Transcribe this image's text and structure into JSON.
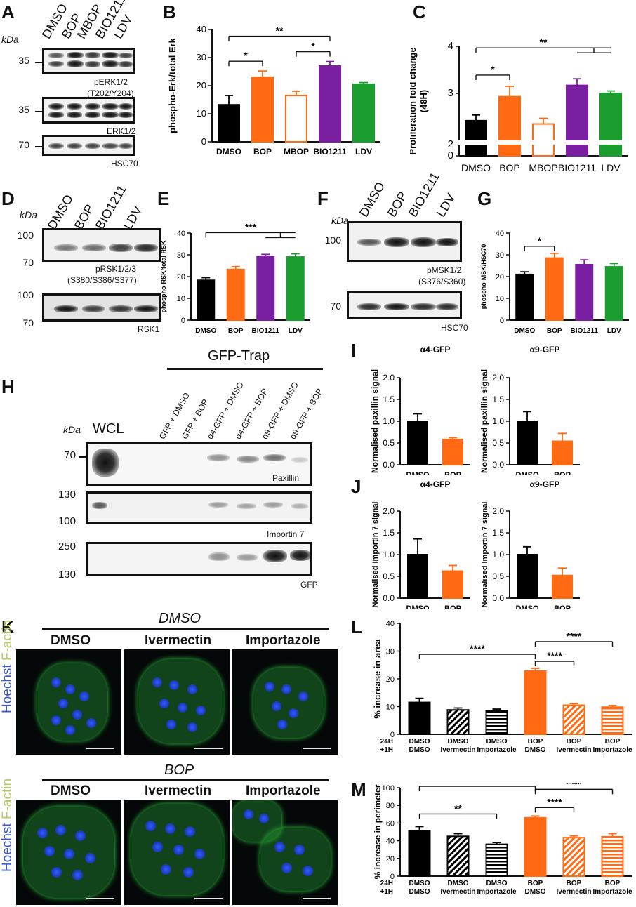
{
  "colors": {
    "black": "#000000",
    "orange": "#ff6a13",
    "purple": "#7b1fa2",
    "green": "#1a9d2e",
    "white": "#ffffff"
  },
  "panels": {
    "A": "A",
    "B": "B",
    "C": "C",
    "D": "D",
    "E": "E",
    "F": "F",
    "G": "G",
    "H": "H",
    "I": "I",
    "J": "J",
    "K": "K",
    "L": "L",
    "M": "M"
  },
  "blots": {
    "a": {
      "kda": "kDa",
      "lanes": [
        "DMSO",
        "BOP",
        "MBOP",
        "BIO1211",
        "LDV"
      ],
      "mw": [
        "35",
        "35",
        "70"
      ],
      "captions": [
        "pERK1/2",
        "(T202/Y204)",
        "ERK1/2",
        "HSC70"
      ]
    },
    "d": {
      "kda": "kDa",
      "lanes": [
        "DMSO",
        "BOP",
        "BIO1211",
        "LDV"
      ],
      "mw": [
        "100",
        "70",
        "100",
        "70"
      ],
      "captions": [
        "pRSK1/2/3",
        "(S380/S386/S377)",
        "RSK1"
      ]
    },
    "f": {
      "kda": "kDa",
      "lanes": [
        "DMSO",
        "BOP",
        "BIO1211",
        "LDV"
      ],
      "mw": [
        "100",
        "70"
      ],
      "captions": [
        "pMSK1/2",
        "(S376/S360)",
        "HSC70"
      ]
    },
    "h": {
      "kda": "kDa",
      "wcl": "WCL",
      "trap": "GFP-Trap",
      "lanes": [
        "GFP + DMSO",
        "GFP + BOP",
        "α4-GFP + DMSO",
        "α4-GFP + BOP",
        "α9-GFP + DMSO",
        "α9-GFP + BOP"
      ],
      "mw": [
        "70",
        "130",
        "100",
        "250",
        "130"
      ],
      "captions": [
        "Paxillin",
        "Importin 7",
        "GFP"
      ]
    }
  },
  "micro": {
    "top_title": "DMSO",
    "bottom_title": "BOP",
    "cols": [
      "DMSO",
      "Ivermectin",
      "Importazole"
    ],
    "side_label": [
      "Hoechst",
      "F-actin"
    ]
  },
  "chart_data": [
    {
      "id": "B",
      "type": "bar",
      "ylabel": "phospho-Erk/total Erk",
      "categories": [
        "DMSO",
        "BOP",
        "MBOP",
        "BIO1211",
        "LDV"
      ],
      "values": [
        13.2,
        23.0,
        16.5,
        27.0,
        20.5
      ],
      "errors": [
        3.3,
        2.2,
        1.5,
        1.6,
        0.6
      ],
      "ylim": [
        0,
        40
      ],
      "yticks": [
        "0",
        "10",
        "20",
        "30",
        "40"
      ],
      "fill": [
        "#000000",
        "#ff6a13",
        "#ffffff",
        "#7b1fa2",
        "#1a9d2e"
      ],
      "stroke": [
        "#000000",
        "#ff6a13",
        "#ff6a13",
        "#7b1fa2",
        "#1a9d2e"
      ],
      "significance": [
        "*",
        "*",
        "**"
      ]
    },
    {
      "id": "C",
      "type": "bar",
      "ylabel": "Proliferation fold change",
      "ylabel2": "(48H)",
      "categories": [
        "DMSO",
        "BOP",
        "MBOP",
        "BIO1211",
        "LDV"
      ],
      "values": [
        2.42,
        2.93,
        2.35,
        3.17,
        3.0
      ],
      "errors": [
        0.12,
        0.22,
        0.12,
        0.14,
        0.05
      ],
      "ylim": [
        0,
        4
      ],
      "yticks": [
        "0",
        "2",
        "3",
        "4"
      ],
      "fill": [
        "#000000",
        "#ff6a13",
        "#ffffff",
        "#7b1fa2",
        "#1a9d2e"
      ],
      "stroke": [
        "#000000",
        "#ff6a13",
        "#ff6a13",
        "#7b1fa2",
        "#1a9d2e"
      ],
      "significance": [
        "*",
        "**"
      ]
    },
    {
      "id": "E",
      "type": "bar",
      "ylabel": "phospho-RSK/total RSK",
      "categories": [
        "DMSO",
        "BOP",
        "BIO1211",
        "LDV"
      ],
      "values": [
        18.3,
        23.3,
        29.2,
        29.0
      ],
      "errors": [
        1.2,
        1.3,
        1.0,
        1.5
      ],
      "ylim": [
        0,
        40
      ],
      "yticks": [
        "0",
        "10",
        "20",
        "30",
        "40"
      ],
      "fill": [
        "#000000",
        "#ff6a13",
        "#7b1fa2",
        "#1a9d2e"
      ],
      "stroke": [
        "#000000",
        "#ff6a13",
        "#7b1fa2",
        "#1a9d2e"
      ],
      "significance": [
        "***"
      ]
    },
    {
      "id": "G",
      "type": "bar",
      "ylabel": "phospho-MSK/HSC70",
      "categories": [
        "DMSO",
        "BOP",
        "BIO1211",
        "LDV"
      ],
      "values": [
        21.0,
        28.5,
        25.5,
        24.5
      ],
      "errors": [
        1.2,
        2.2,
        2.2,
        1.5
      ],
      "ylim": [
        0,
        40
      ],
      "yticks": [
        "0",
        "10",
        "20",
        "30",
        "40"
      ],
      "fill": [
        "#000000",
        "#ff6a13",
        "#7b1fa2",
        "#1a9d2e"
      ],
      "stroke": [
        "#000000",
        "#ff6a13",
        "#7b1fa2",
        "#1a9d2e"
      ],
      "significance": [
        "*"
      ]
    },
    {
      "id": "I1",
      "type": "bar",
      "title": "α4-GFP",
      "ylabel": "Normalised paxillin signal",
      "categories": [
        "DMSO",
        "BOP"
      ],
      "values": [
        1.0,
        0.58
      ],
      "errors": [
        0.17,
        0.04
      ],
      "ylim": [
        0,
        2
      ],
      "yticks": [
        "0.0",
        "0.5",
        "1.0",
        "1.5",
        "2.0"
      ],
      "fill": [
        "#000000",
        "#ff6a13"
      ]
    },
    {
      "id": "I2",
      "type": "bar",
      "title": "α9-GFP",
      "ylabel": "Normalised paxillin signal",
      "categories": [
        "DMSO",
        "BOP"
      ],
      "values": [
        1.0,
        0.54
      ],
      "errors": [
        0.22,
        0.18
      ],
      "ylim": [
        0,
        2
      ],
      "yticks": [
        "0.0",
        "0.5",
        "1.0",
        "1.5",
        "2.0"
      ],
      "fill": [
        "#000000",
        "#ff6a13"
      ]
    },
    {
      "id": "J1",
      "type": "bar",
      "title": "α4-GFP",
      "ylabel": "Normalised Importin 7 signal",
      "categories": [
        "DMSO",
        "BOP"
      ],
      "values": [
        1.0,
        0.62
      ],
      "errors": [
        0.36,
        0.13
      ],
      "ylim": [
        0,
        2
      ],
      "yticks": [
        "0.0",
        "0.5",
        "1.0",
        "1.5",
        "2.0"
      ],
      "fill": [
        "#000000",
        "#ff6a13"
      ]
    },
    {
      "id": "J2",
      "type": "bar",
      "title": "α9-GFP",
      "ylabel": "Normalised Importin 7 signal",
      "categories": [
        "DMSO",
        "BOP"
      ],
      "values": [
        1.0,
        0.52
      ],
      "errors": [
        0.18,
        0.17
      ],
      "ylim": [
        0,
        2
      ],
      "yticks": [
        "0.0",
        "0.5",
        "1.0",
        "1.5",
        "2.0"
      ],
      "fill": [
        "#000000",
        "#ff6a13"
      ]
    },
    {
      "id": "L",
      "type": "bar",
      "ylabel": "% increase in area",
      "rowlabels": [
        "24H",
        "+1H"
      ],
      "categories": [
        [
          "DMSO",
          "DMSO"
        ],
        [
          "DMSO",
          "Ivermectin"
        ],
        [
          "DMSO",
          "Importazole"
        ],
        [
          "BOP",
          "DMSO"
        ],
        [
          "BOP",
          "Ivermectin"
        ],
        [
          "BOP",
          "Importazole"
        ]
      ],
      "values": [
        11.5,
        8.8,
        8.5,
        22.8,
        10.5,
        9.8
      ],
      "errors": [
        1.5,
        0.7,
        0.6,
        1.0,
        0.6,
        0.6
      ],
      "ylim": [
        0,
        40
      ],
      "yticks": [
        "0",
        "10",
        "20",
        "30",
        "40"
      ],
      "pattern": [
        "solid",
        "diag",
        "horiz",
        "solid",
        "diag",
        "horiz"
      ],
      "color": [
        "#000000",
        "#000000",
        "#000000",
        "#ff6a13",
        "#ff6a13",
        "#ff6a13"
      ],
      "significance": [
        "****",
        "****",
        "****"
      ]
    },
    {
      "id": "M",
      "type": "bar",
      "ylabel": "% increase in perimeter",
      "rowlabels": [
        "24H",
        "+1H"
      ],
      "categories": [
        [
          "DMSO",
          "DMSO"
        ],
        [
          "DMSO",
          "Ivermectin"
        ],
        [
          "DMSO",
          "Importazole"
        ],
        [
          "BOP",
          "DMSO"
        ],
        [
          "BOP",
          "Ivermectin"
        ],
        [
          "BOP",
          "Importazole"
        ]
      ],
      "values": [
        51.5,
        45.0,
        36.0,
        66.0,
        43.5,
        44.5
      ],
      "errors": [
        4.5,
        3.0,
        2.0,
        2.0,
        2.0,
        3.5
      ],
      "ylim": [
        0,
        100
      ],
      "yticks": [
        "0",
        "20",
        "40",
        "60",
        "80",
        "100"
      ],
      "pattern": [
        "solid",
        "diag",
        "horiz",
        "solid",
        "diag",
        "horiz"
      ],
      "color": [
        "#000000",
        "#000000",
        "#000000",
        "#ff6a13",
        "#ff6a13",
        "#ff6a13"
      ],
      "significance": [
        "**",
        "**",
        "****",
        "****"
      ]
    }
  ]
}
